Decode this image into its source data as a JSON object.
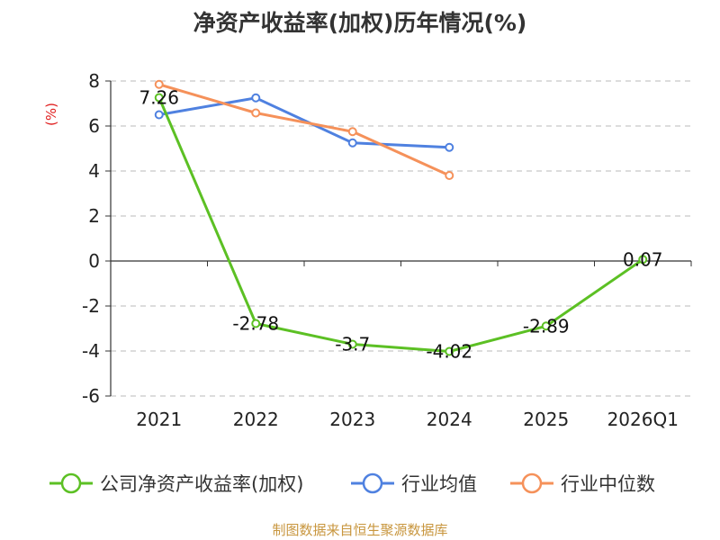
{
  "chart_data": {
    "type": "line",
    "title": "净资产收益率(加权)历年情况(%)",
    "ylabel": "(%)",
    "categories": [
      "2021",
      "2022",
      "2023",
      "2024",
      "2025",
      "2026Q1"
    ],
    "ylim": [
      -6,
      8
    ],
    "yticks": [
      8,
      6,
      4,
      2,
      0,
      -2,
      -4,
      -6
    ],
    "grid": true,
    "legend_position": "bottom",
    "series": [
      {
        "name": "公司净资产收益率(加权)",
        "color": "#5cc024",
        "values": [
          7.26,
          -2.78,
          -3.7,
          -4.02,
          -2.89,
          0.07
        ],
        "labels": [
          "7.26",
          "-2.78",
          "-3.7",
          "-4.02",
          "-2.89",
          "0.07"
        ]
      },
      {
        "name": "行业均值",
        "color": "#4f81e0",
        "values": [
          6.5,
          7.25,
          5.25,
          5.05,
          null,
          null
        ]
      },
      {
        "name": "行业中位数",
        "color": "#f5915a",
        "values": [
          7.85,
          6.58,
          5.75,
          3.8,
          null,
          null
        ]
      }
    ],
    "source": "制图数据来自恒生聚源数据库"
  }
}
